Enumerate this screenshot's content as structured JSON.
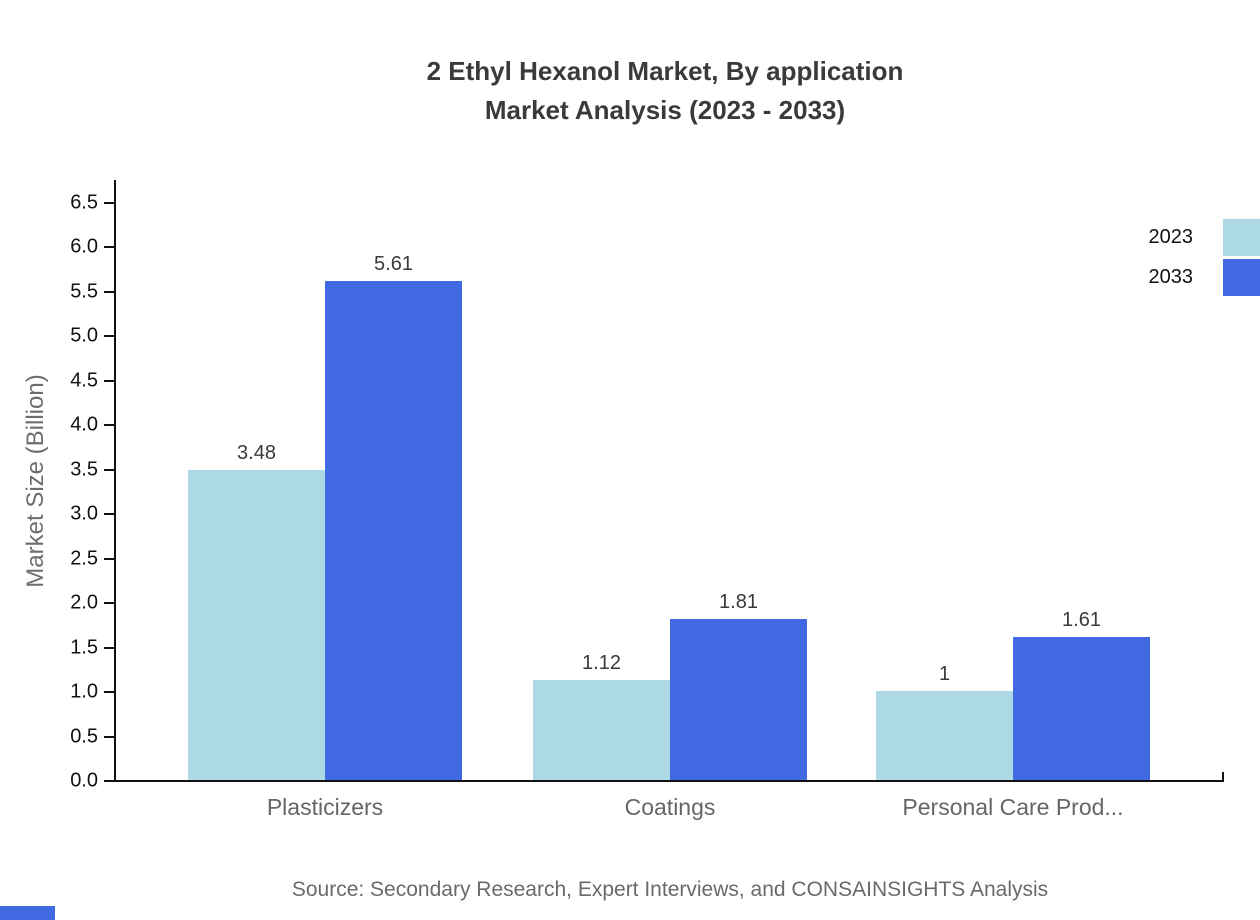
{
  "title": {
    "line1": "2 Ethyl Hexanol Market, By application",
    "line2": "Market Analysis (2023 - 2033)"
  },
  "source": "Source: Secondary Research, Expert Interviews, and CONSAINSIGHTS Analysis",
  "chart_data": {
    "type": "bar",
    "title": "2 Ethyl Hexanol Market, By application Market Analysis (2023 - 2033)",
    "categories": [
      "Plasticizers",
      "Coatings",
      "Personal Care Prod..."
    ],
    "series": [
      {
        "name": "2023",
        "color": "#ADD8E6",
        "values": [
          3.48,
          1.12,
          1
        ]
      },
      {
        "name": "2033",
        "color": "#4169E1",
        "values": [
          5.61,
          1.81,
          1.61
        ]
      }
    ],
    "xlabel": "",
    "ylabel": "Market Size (Billion)",
    "ylim": [
      0,
      6.5
    ],
    "ytick_step": 0.5,
    "grid": false,
    "legend_position": "top-right",
    "value_labels": true
  },
  "colors": {
    "axis": "#111111",
    "title_text": "#3a3a3a",
    "tick_text": "#111111",
    "category_text": "#666666",
    "value_text": "#3a3a3a",
    "muted_text": "#6a6a6a",
    "series_2023": "#ADD8E6",
    "series_2033": "#4169E1"
  }
}
